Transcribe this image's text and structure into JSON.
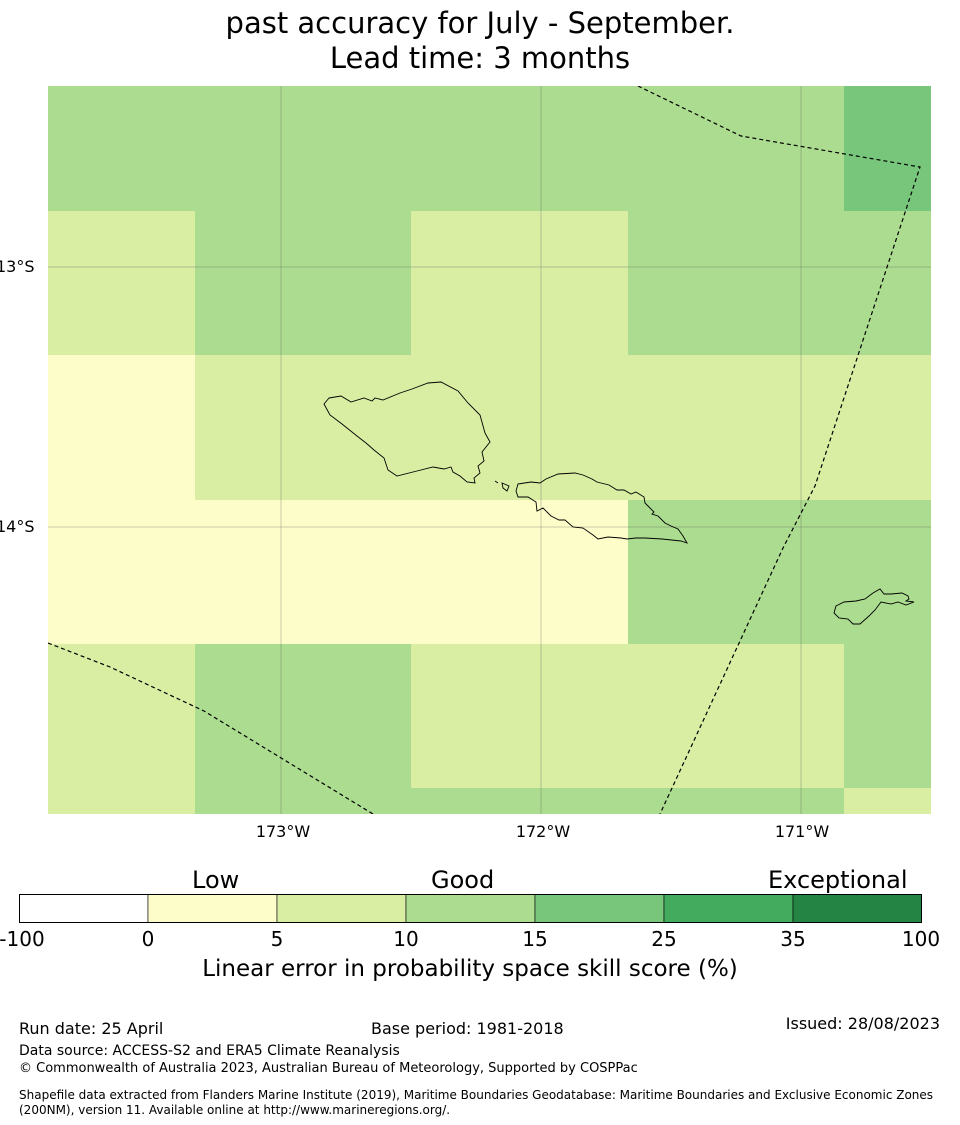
{
  "title": {
    "line1": "past accuracy for July - September.",
    "line2": "Lead time: 3 months"
  },
  "map": {
    "lat_labels": [
      "13°S",
      "14°S"
    ],
    "lon_labels": [
      "173°W",
      "172°W",
      "171°W"
    ],
    "grid_rows": [
      [
        15,
        15,
        15,
        15,
        15,
        25
      ],
      [
        10,
        15,
        10,
        15,
        15,
        15
      ],
      [
        5,
        10,
        10,
        10,
        10,
        10
      ],
      [
        5,
        5,
        5,
        15,
        15,
        15
      ],
      [
        10,
        15,
        10,
        10,
        10,
        15
      ],
      [
        10,
        15,
        15,
        15,
        15,
        10
      ]
    ]
  },
  "colorbar": {
    "categories": [
      "Low",
      "Good",
      "Exceptional"
    ],
    "ticks": [
      "-100",
      "0",
      "5",
      "10",
      "15",
      "25",
      "35",
      "100"
    ],
    "colors": [
      "#ffffff",
      "#fdfdca",
      "#d9eda3",
      "#acdc8f",
      "#78c67c",
      "#42ab5e",
      "#238443"
    ],
    "title": "Linear error in probability space skill score (%)"
  },
  "footer": {
    "run_date": "Run date: 25 April",
    "base_period": "Base period: 1981-2018",
    "issued": "Issued: 28/08/2023",
    "data_source": "Data source: ACCESS-S2 and ERA5 Climate Reanalysis",
    "copyright": "© Commonwealth of Australia 2023, Australian Bureau of Meteorology, Supported by COSPPac",
    "shapefile": "Shapefile data extracted from Flanders Marine Institute (2019), Maritime Boundaries Geodatabase: Maritime Boundaries and Exclusive Economic Zones (200NM), version 11. Available online at http://www.marineregions.org/."
  }
}
